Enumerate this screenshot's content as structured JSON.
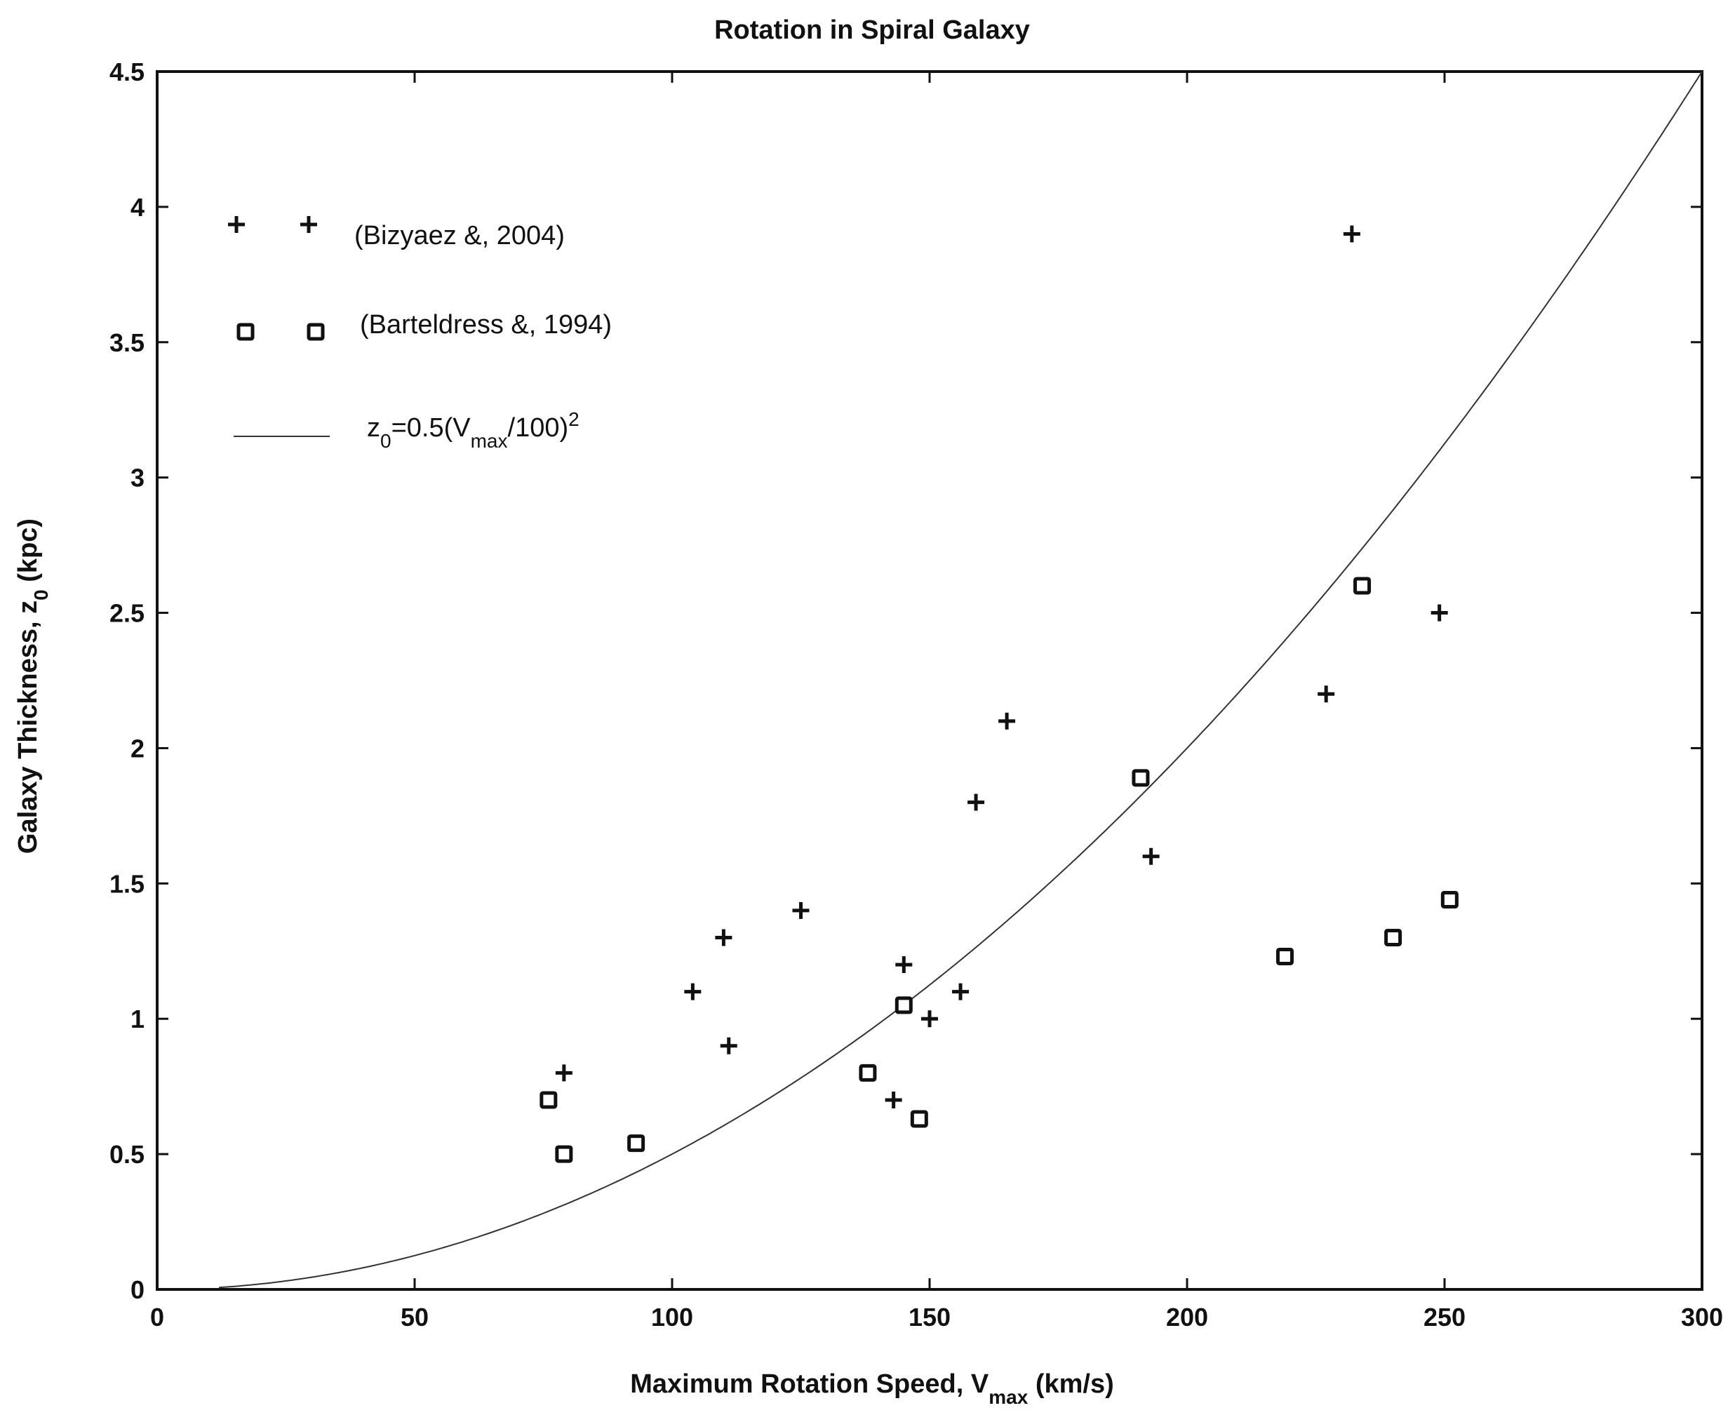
{
  "chart_data": {
    "type": "scatter",
    "title": "Rotation in Spiral Galaxy",
    "xlabel": {
      "main": "Maximum Rotation Speed, V",
      "sub": "max",
      "tail": " (km/s)"
    },
    "ylabel": {
      "main": "Galaxy Thickness, z",
      "sub": "0",
      "tail": " (kpc)"
    },
    "xlim": [
      0,
      300
    ],
    "ylim": [
      0,
      4.5
    ],
    "xticks": [
      "0",
      "50",
      "100",
      "150",
      "200",
      "250",
      "300"
    ],
    "yticks": [
      "0",
      "0.5",
      "1",
      "1.5",
      "2",
      "2.5",
      "3",
      "3.5",
      "4",
      "4.5"
    ],
    "grid": false,
    "legend_position": "top-left",
    "series": [
      {
        "name": "(Bizyaez &, 2004)",
        "marker": "plus",
        "points": [
          [
            79,
            0.8
          ],
          [
            104,
            1.1
          ],
          [
            110,
            1.3
          ],
          [
            111,
            0.9
          ],
          [
            125,
            1.4
          ],
          [
            143,
            0.7
          ],
          [
            145,
            1.2
          ],
          [
            150,
            1.0
          ],
          [
            156,
            1.1
          ],
          [
            159,
            1.8
          ],
          [
            165,
            2.1
          ],
          [
            193,
            1.6
          ],
          [
            227,
            2.2
          ],
          [
            232,
            3.9
          ],
          [
            249,
            2.5
          ]
        ]
      },
      {
        "name": "(Barteldress &, 1994)",
        "marker": "square",
        "points": [
          [
            76,
            0.7
          ],
          [
            79,
            0.5
          ],
          [
            93,
            0.54
          ],
          [
            138,
            0.8
          ],
          [
            145,
            1.05
          ],
          [
            148,
            0.63
          ],
          [
            191,
            1.89
          ],
          [
            219,
            1.23
          ],
          [
            234,
            2.6
          ],
          [
            240,
            1.3
          ],
          [
            251,
            1.44
          ]
        ]
      },
      {
        "name": "z0=0.5(Vmax/100)^2",
        "marker": "line",
        "formula": {
          "coef": 0.5,
          "scale": 100,
          "power": 2,
          "x_start": 12,
          "x_end": 300
        }
      }
    ],
    "legend_formula": {
      "a": "z",
      "a_sub": "0",
      "b": "=0.5(V",
      "b_sub": "max",
      "c": "/100)",
      "c_sup": "2"
    }
  }
}
